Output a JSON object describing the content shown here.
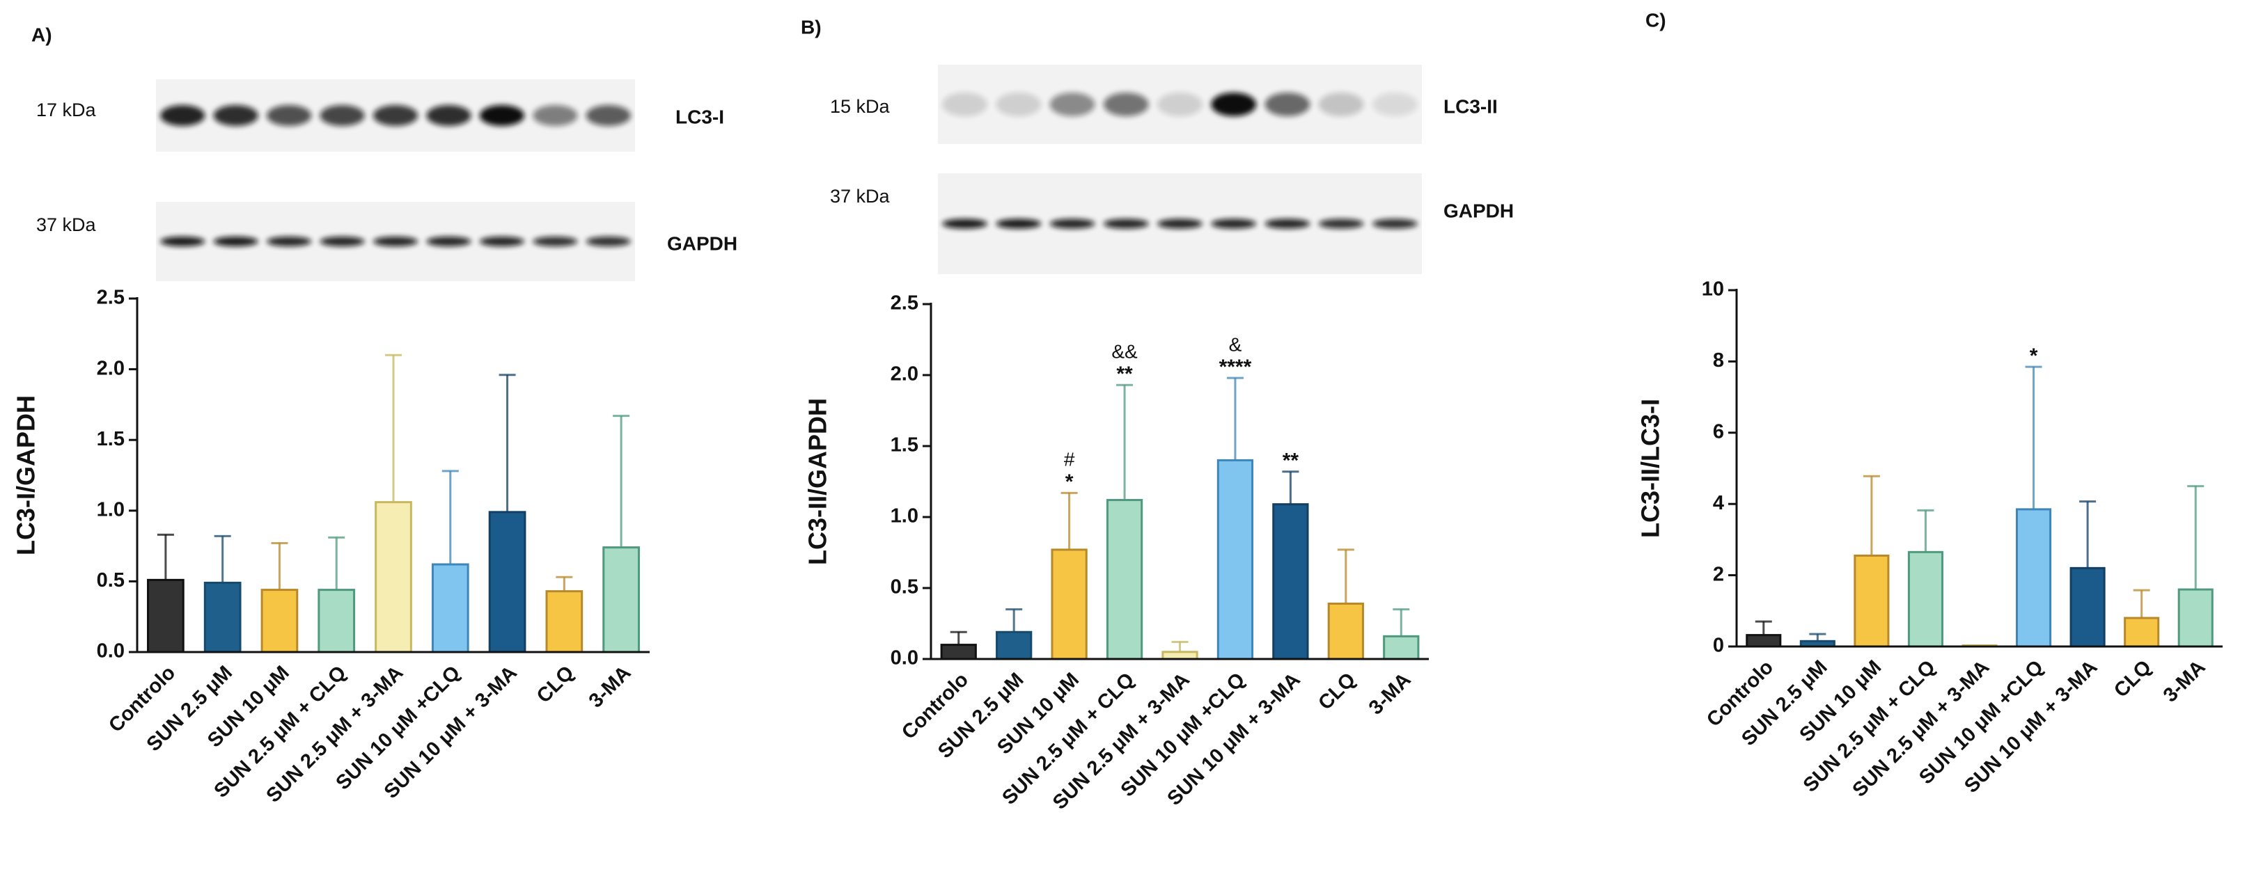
{
  "chart_data": [
    {
      "type": "bar",
      "panel": "A)",
      "ylabel": "LC3-I/GAPDH",
      "blots": [
        {
          "marker": "17 kDa",
          "protein": "LC3-I"
        },
        {
          "marker": "37 kDa",
          "protein": "GAPDH"
        }
      ],
      "categories": [
        "Controlo",
        "SUN 2.5 μM",
        "SUN 10 μM",
        "SUN 2.5 μM + CLQ",
        "SUN 2.5 μM + 3-MA",
        "SUN 10 μM +CLQ",
        "SUN 10 μM + 3-MA",
        "CLQ",
        "3-MA"
      ],
      "values": [
        0.51,
        0.49,
        0.44,
        0.44,
        1.06,
        0.62,
        0.99,
        0.43,
        0.74
      ],
      "errors": [
        0.32,
        0.33,
        0.33,
        0.37,
        1.04,
        0.66,
        0.97,
        0.1,
        0.93
      ],
      "colors": [
        "#333333",
        "#1e5f8c",
        "#f6c544",
        "#a9dcc4",
        "#f6edb3",
        "#80c4f0",
        "#1b5b8b",
        "#f6c544",
        "#a9dcc4"
      ],
      "edge_colors": [
        "#111111",
        "#174a6c",
        "#b8892a",
        "#4f9a7e",
        "#c8b860",
        "#3f86b8",
        "#123f62",
        "#b8892a",
        "#4f9a7e"
      ],
      "ylim": [
        0,
        2.5
      ],
      "yticks": [
        {
          "value": 0,
          "label": "0.0"
        },
        0.5,
        {
          "value": 1,
          "label": "1.0"
        },
        1.5,
        {
          "value": 2,
          "label": "2.0"
        },
        2.5
      ]
    },
    {
      "type": "bar",
      "panel": "B)",
      "ylabel": "LC3-II/GAPDH",
      "blots": [
        {
          "marker": "15 kDa",
          "protein": "LC3-II"
        },
        {
          "marker": "37 kDa",
          "protein": "GAPDH"
        }
      ],
      "categories": [
        "Controlo",
        "SUN 2.5 μM",
        "SUN 10 μM",
        "SUN 2.5 μM + CLQ",
        "SUN 2.5 μM + 3-MA",
        "SUN 10 μM +CLQ",
        "SUN 10 μM + 3-MA",
        "CLQ",
        "3-MA"
      ],
      "values": [
        0.1,
        0.19,
        0.77,
        1.12,
        0.05,
        1.4,
        1.09,
        0.39,
        0.16
      ],
      "errors": [
        0.09,
        0.16,
        0.4,
        0.81,
        0.07,
        0.58,
        0.23,
        0.38,
        0.19
      ],
      "significance": [
        null,
        null,
        "*",
        "**",
        null,
        "****",
        "**",
        null,
        null
      ],
      "significance_2": [
        null,
        null,
        "#",
        "&&",
        null,
        "&",
        null,
        null,
        null
      ],
      "colors": [
        "#333333",
        "#1e5f8c",
        "#f6c544",
        "#a9dcc4",
        "#f6edb3",
        "#80c4f0",
        "#1b5b8b",
        "#f6c544",
        "#a9dcc4"
      ],
      "edge_colors": [
        "#111111",
        "#174a6c",
        "#b8892a",
        "#4f9a7e",
        "#c8b860",
        "#3f86b8",
        "#123f62",
        "#b8892a",
        "#4f9a7e"
      ],
      "ylim": [
        0,
        2.5
      ],
      "yticks": [
        {
          "value": 0,
          "label": "0.0"
        },
        0.5,
        {
          "value": 1,
          "label": "1.0"
        },
        1.5,
        {
          "value": 2,
          "label": "2.0"
        },
        2.5
      ]
    },
    {
      "type": "bar",
      "panel": "C)",
      "ylabel": "LC3-II/LC3-I",
      "categories": [
        "Controlo",
        "SUN 2.5 μM",
        "SUN 10 μM",
        "SUN 2.5 μM + CLQ",
        "SUN 2.5 μM + 3-MA",
        "SUN 10 μM +CLQ",
        "SUN 10 μM + 3-MA",
        "CLQ",
        "3-MA"
      ],
      "values": [
        0.32,
        0.15,
        2.55,
        2.65,
        0.03,
        3.85,
        2.2,
        0.8,
        1.6
      ],
      "errors": [
        0.38,
        0.2,
        2.23,
        1.17,
        0,
        4.0,
        1.87,
        0.78,
        2.9
      ],
      "significance": [
        null,
        null,
        null,
        null,
        null,
        "*",
        null,
        null,
        null
      ],
      "colors": [
        "#333333",
        "#1e5f8c",
        "#f6c544",
        "#a9dcc4",
        "#f6edb3",
        "#80c4f0",
        "#1b5b8b",
        "#f6c544",
        "#a9dcc4"
      ],
      "edge_colors": [
        "#111111",
        "#174a6c",
        "#b8892a",
        "#4f9a7e",
        "#c8b860",
        "#3f86b8",
        "#123f62",
        "#b8892a",
        "#4f9a7e"
      ],
      "ylim": [
        0,
        10
      ],
      "yticks": [
        0,
        2,
        4,
        6,
        8,
        10
      ]
    }
  ]
}
